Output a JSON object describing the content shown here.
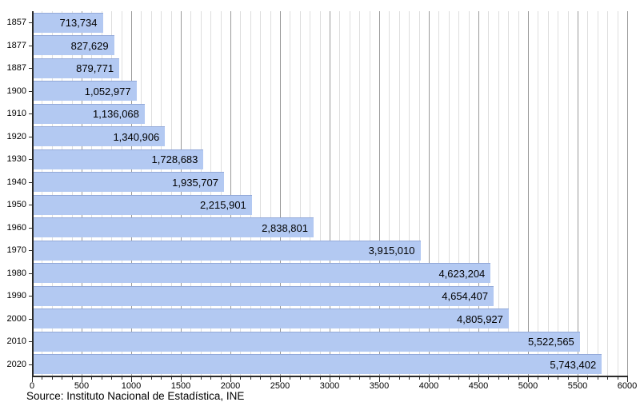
{
  "chart_data": {
    "type": "bar",
    "orientation": "horizontal",
    "title": "",
    "xlabel": "",
    "ylabel": "",
    "categories": [
      "1857",
      "1877",
      "1887",
      "1900",
      "1910",
      "1920",
      "1930",
      "1940",
      "1950",
      "1960",
      "1970",
      "1980",
      "1990",
      "2000",
      "2010",
      "2020"
    ],
    "values": [
      713734,
      827629,
      879771,
      1052977,
      1136068,
      1340906,
      1728683,
      1935707,
      2215901,
      2838801,
      3915010,
      4623204,
      4654407,
      4805927,
      5522565,
      5743402
    ],
    "value_labels": [
      "713,734",
      "827,629",
      "879,771",
      "1,052,977",
      "1,136,068",
      "1,340,906",
      "1,728,683",
      "1,935,707",
      "2,215,901",
      "2,838,801",
      "3,915,010",
      "4,623,204",
      "4,654,407",
      "4,805,927",
      "5,522,565",
      "5,743,402"
    ],
    "xlim_thousands": [
      0,
      6000
    ],
    "x_major_tick_step": 500,
    "x_minor_tick_step": 100,
    "x_tick_labels": [
      "0",
      "500",
      "1000",
      "1500",
      "2000",
      "2500",
      "3000",
      "3500",
      "4000",
      "4500",
      "5000",
      "5500",
      "6000"
    ],
    "grid": true,
    "legend": false,
    "source": "Source: Instituto Nacional de Estadística, INE",
    "colors": {
      "bar_fill": "#b3c9f2",
      "bar_edge": "#93a9d9",
      "grid_minor": "#dedede",
      "grid_major": "#9a9a9a",
      "axis": "#2a2a2a",
      "text": "#000000"
    }
  }
}
